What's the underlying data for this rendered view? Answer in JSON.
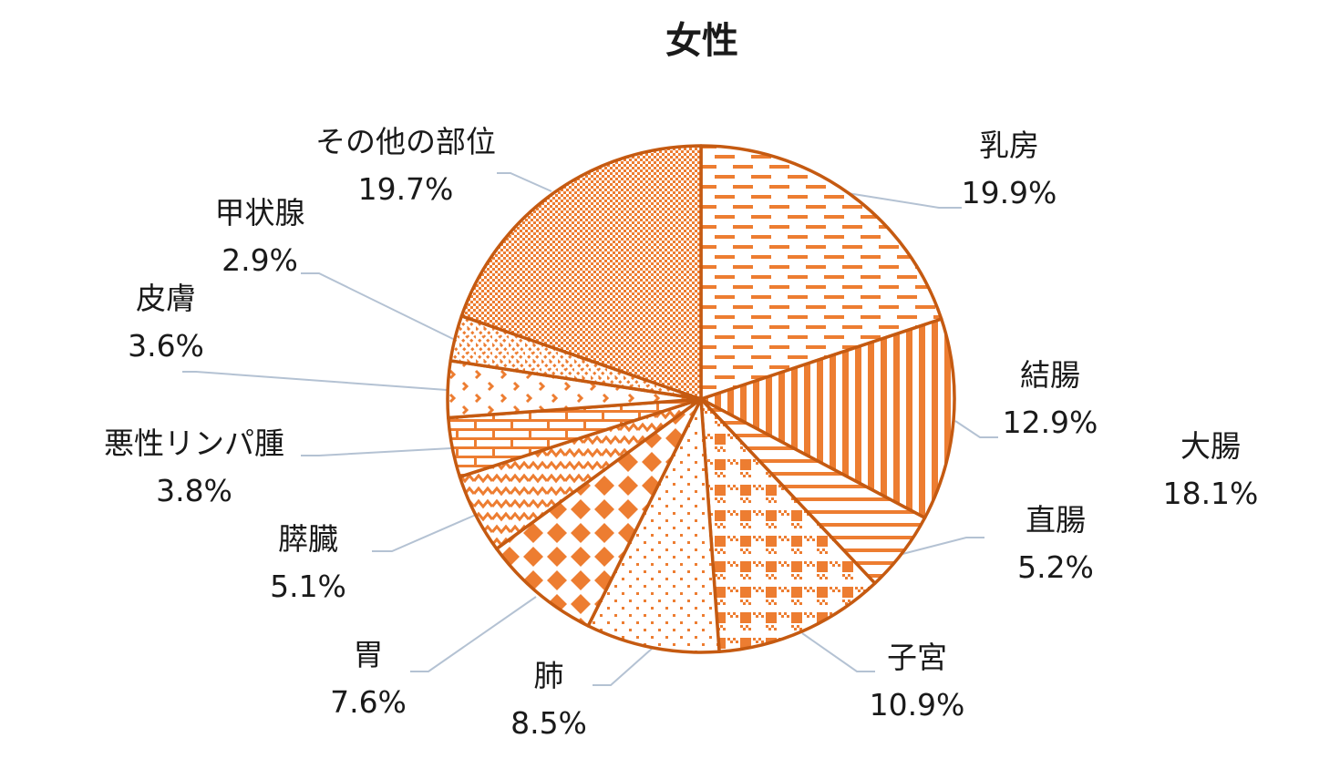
{
  "chart_data": {
    "type": "pie",
    "title": "女性",
    "start": "top",
    "direction": "clockwise",
    "colors": {
      "fill": "#ED7D31",
      "border": "#C55A11",
      "leader": "#B4C2D3"
    },
    "slices": [
      {
        "label": "乳房",
        "value": 19.9,
        "value_label": "19.9%",
        "pattern": "horizontal-dashes"
      },
      {
        "label": "結腸",
        "value": 12.9,
        "value_label": "12.9%",
        "pattern": "vertical-stripes"
      },
      {
        "label": "直腸",
        "value": 5.2,
        "value_label": "5.2%",
        "pattern": "horizontal-stripes"
      },
      {
        "label": "子宮",
        "value": 10.9,
        "value_label": "10.9%",
        "pattern": "plaid"
      },
      {
        "label": "肺",
        "value": 8.5,
        "value_label": "8.5%",
        "pattern": "dots"
      },
      {
        "label": "胃",
        "value": 7.6,
        "value_label": "7.6%",
        "pattern": "diamonds"
      },
      {
        "label": "膵臓",
        "value": 5.1,
        "value_label": "5.1%",
        "pattern": "zigzag"
      },
      {
        "label": "悪性リンパ腫",
        "value": 3.8,
        "value_label": "3.8%",
        "pattern": "bricks"
      },
      {
        "label": "皮膚",
        "value": 3.6,
        "value_label": "3.6%",
        "pattern": "chevrons"
      },
      {
        "label": "甲状腺",
        "value": 2.9,
        "value_label": "2.9%",
        "pattern": "weave"
      },
      {
        "label": "その他の部位",
        "value": 19.7,
        "value_label": "19.7%",
        "pattern": "fine-checker"
      }
    ],
    "annotations": [
      {
        "label": "大腸",
        "value_label": "18.1%"
      }
    ]
  }
}
